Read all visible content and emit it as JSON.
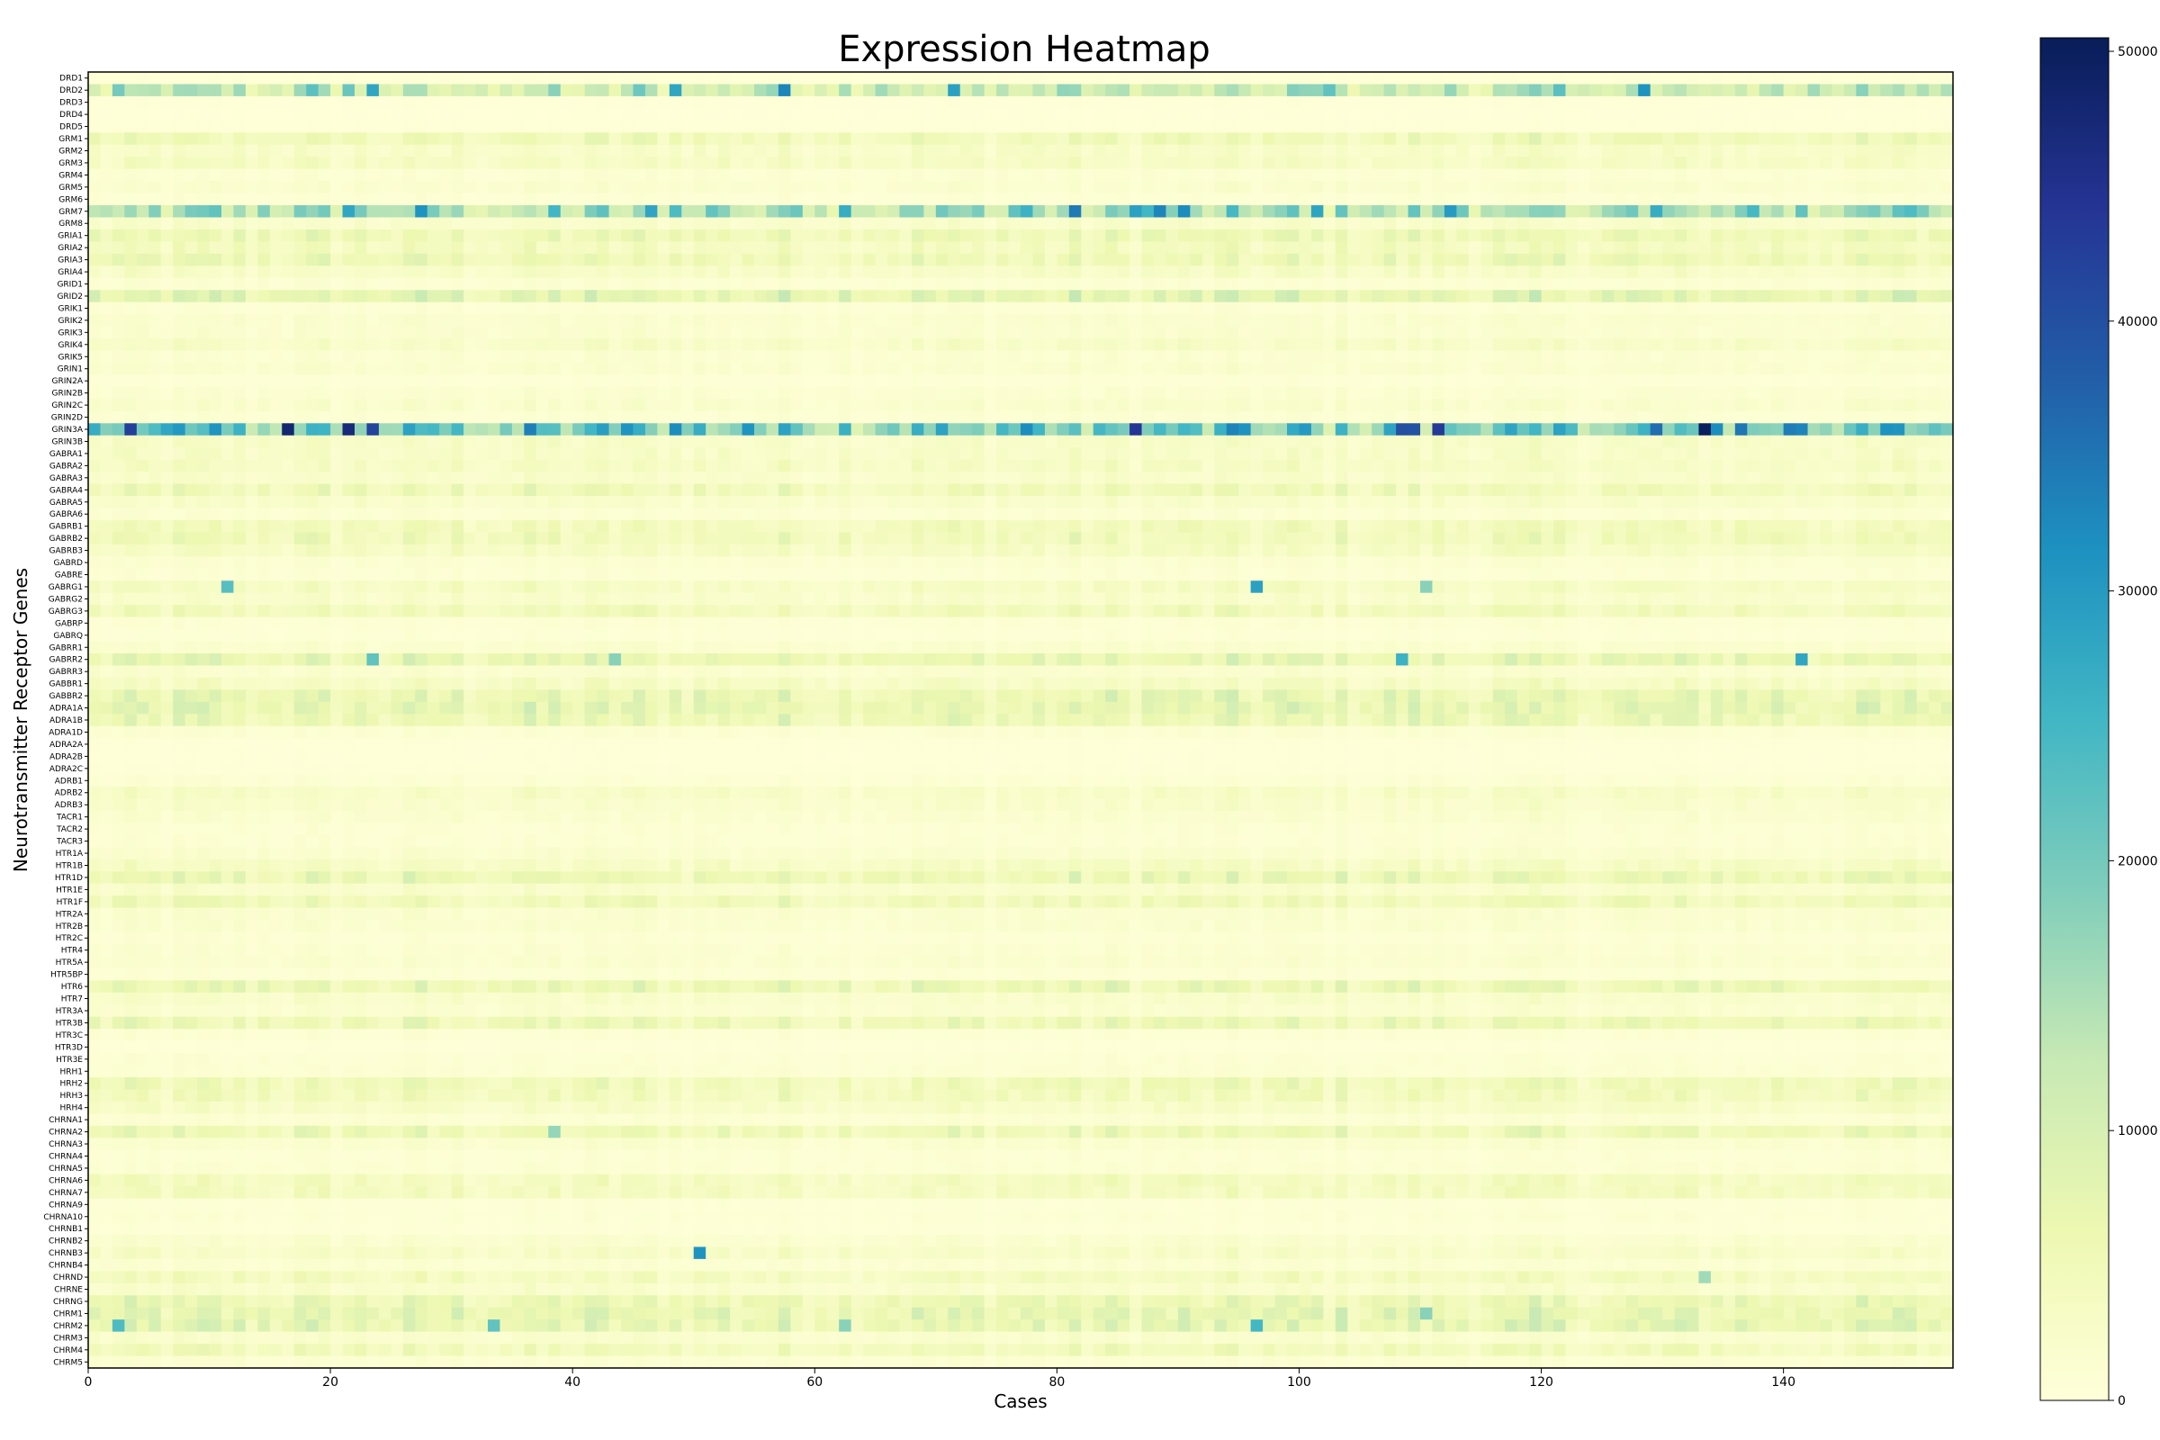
{
  "chart_data": {
    "type": "heatmap",
    "title": "Expression Heatmap",
    "xlabel": "Cases",
    "ylabel": "Neurotransmitter Receptor Genes",
    "x_count": 154,
    "xlim": [
      0,
      154
    ],
    "x_ticks": [
      0,
      20,
      40,
      60,
      80,
      100,
      120,
      140
    ],
    "colorbar": {
      "min": 0,
      "max": 50500,
      "ticks": [
        0,
        10000,
        20000,
        30000,
        40000,
        50000
      ],
      "colormap": "YlGnBu",
      "colors": [
        "#ffffd9",
        "#edf8b1",
        "#c7e9b4",
        "#7fcdbb",
        "#41b6c4",
        "#1d91c0",
        "#225ea8",
        "#253494",
        "#081d58"
      ]
    },
    "genes": [
      "DRD1",
      "DRD2",
      "DRD3",
      "DRD4",
      "DRD5",
      "GRM1",
      "GRM2",
      "GRM3",
      "GRM4",
      "GRM5",
      "GRM6",
      "GRM7",
      "GRM8",
      "GRIA1",
      "GRIA2",
      "GRIA3",
      "GRIA4",
      "GRID1",
      "GRID2",
      "GRIK1",
      "GRIK2",
      "GRIK3",
      "GRIK4",
      "GRIK5",
      "GRIN1",
      "GRIN2A",
      "GRIN2B",
      "GRIN2C",
      "GRIN2D",
      "GRIN3A",
      "GRIN3B",
      "GABRA1",
      "GABRA2",
      "GABRA3",
      "GABRA4",
      "GABRA5",
      "GABRA6",
      "GABRB1",
      "GABRB2",
      "GABRB3",
      "GABRD",
      "GABRE",
      "GABRG1",
      "GABRG2",
      "GABRG3",
      "GABRP",
      "GABRQ",
      "GABRR1",
      "GABRR2",
      "GABRR3",
      "GABBR1",
      "GABBR2",
      "ADRA1A",
      "ADRA1B",
      "ADRA1D",
      "ADRA2A",
      "ADRA2B",
      "ADRA2C",
      "ADRB1",
      "ADRB2",
      "ADRB3",
      "TACR1",
      "TACR2",
      "TACR3",
      "HTR1A",
      "HTR1B",
      "HTR1D",
      "HTR1E",
      "HTR1F",
      "HTR2A",
      "HTR2B",
      "HTR2C",
      "HTR4",
      "HTR5A",
      "HTR5BP",
      "HTR6",
      "HTR7",
      "HTR3A",
      "HTR3B",
      "HTR3C",
      "HTR3D",
      "HTR3E",
      "HRH1",
      "HRH2",
      "HRH3",
      "HRH4",
      "CHRNA1",
      "CHRNA2",
      "CHRNA3",
      "CHRNA4",
      "CHRNA5",
      "CHRNA6",
      "CHRNA7",
      "CHRNA9",
      "CHRNA10",
      "CHRNB1",
      "CHRNB2",
      "CHRNB3",
      "CHRNB4",
      "CHRND",
      "CHRNE",
      "CHRNG",
      "CHRM1",
      "CHRM2",
      "CHRM3",
      "CHRM4",
      "CHRM5"
    ],
    "row_base_values": [
      400,
      10000,
      300,
      200,
      400,
      4500,
      2500,
      3000,
      1000,
      1500,
      800,
      13000,
      2000,
      5000,
      3500,
      5000,
      2500,
      1000,
      7000,
      800,
      1500,
      1500,
      2500,
      1200,
      1500,
      600,
      1200,
      1800,
      1000,
      18000,
      2500,
      2500,
      3000,
      2000,
      4500,
      2000,
      1000,
      4000,
      4500,
      3000,
      1200,
      800,
      3000,
      2000,
      4000,
      800,
      600,
      1500,
      6000,
      1500,
      3000,
      6000,
      6500,
      5500,
      1000,
      400,
      300,
      400,
      900,
      2500,
      2000,
      1500,
      900,
      900,
      1500,
      3000,
      5500,
      2000,
      4500,
      1500,
      1500,
      800,
      1200,
      1500,
      800,
      5500,
      2000,
      1500,
      5000,
      800,
      400,
      800,
      1000,
      4500,
      4000,
      2500,
      1000,
      5000,
      1500,
      800,
      1000,
      3500,
      3500,
      600,
      800,
      500,
      1500,
      2500,
      1200,
      3500,
      2000,
      5500,
      6500,
      6500,
      1800,
      4000,
      1200
    ],
    "hot_cells": [
      {
        "gene": "DRD2",
        "case": 2,
        "value": 20000
      },
      {
        "gene": "DRD2",
        "case": 21,
        "value": 21000
      },
      {
        "gene": "DRD2",
        "case": 23,
        "value": 28000
      },
      {
        "gene": "DRD2",
        "case": 48,
        "value": 28000
      },
      {
        "gene": "DRD2",
        "case": 57,
        "value": 33000
      },
      {
        "gene": "DRD2",
        "case": 71,
        "value": 29000
      },
      {
        "gene": "DRD2",
        "case": 102,
        "value": 22000
      },
      {
        "gene": "DRD2",
        "case": 128,
        "value": 31000
      },
      {
        "gene": "DRD2",
        "case": 38,
        "value": 18000
      },
      {
        "gene": "DRD2",
        "case": 112,
        "value": 17000
      },
      {
        "gene": "GRM7",
        "case": 21,
        "value": 28000
      },
      {
        "gene": "GRM7",
        "case": 10,
        "value": 22000
      },
      {
        "gene": "GRM7",
        "case": 48,
        "value": 24000
      },
      {
        "gene": "GRM7",
        "case": 62,
        "value": 27000
      },
      {
        "gene": "GRM7",
        "case": 77,
        "value": 26000
      },
      {
        "gene": "GRM7",
        "case": 86,
        "value": 29000
      },
      {
        "gene": "GRM7",
        "case": 88,
        "value": 33000
      },
      {
        "gene": "GRM7",
        "case": 112,
        "value": 30000
      },
      {
        "gene": "GRM7",
        "case": 129,
        "value": 27000
      },
      {
        "gene": "GRM7",
        "case": 141,
        "value": 22000
      },
      {
        "gene": "GRIN3A",
        "case": 16,
        "value": 48000
      },
      {
        "gene": "GRIN3A",
        "case": 21,
        "value": 47000
      },
      {
        "gene": "GRIN3A",
        "case": 23,
        "value": 42000
      },
      {
        "gene": "GRIN3A",
        "case": 86,
        "value": 44000
      },
      {
        "gene": "GRIN3A",
        "case": 108,
        "value": 40000
      },
      {
        "gene": "GRIN3A",
        "case": 133,
        "value": 50000
      },
      {
        "gene": "GRIN3A",
        "case": 136,
        "value": 35000
      },
      {
        "gene": "GRIN3A",
        "case": 129,
        "value": 36000
      },
      {
        "gene": "GRIN3A",
        "case": 140,
        "value": 34000
      },
      {
        "gene": "GRIN3A",
        "case": 141,
        "value": 33000
      },
      {
        "gene": "GRIN3A",
        "case": 10,
        "value": 31000
      },
      {
        "gene": "GRIN3A",
        "case": 44,
        "value": 31000
      },
      {
        "gene": "GRIN3A",
        "case": 48,
        "value": 32000
      },
      {
        "gene": "GRIN3A",
        "case": 54,
        "value": 31000
      },
      {
        "gene": "GRIN3A",
        "case": 77,
        "value": 32000
      },
      {
        "gene": "GRIN3A",
        "case": 6,
        "value": 28000
      },
      {
        "gene": "GRIN3A",
        "case": 0,
        "value": 27000
      },
      {
        "gene": "GABRG1",
        "case": 11,
        "value": 23000
      },
      {
        "gene": "GABRG1",
        "case": 96,
        "value": 29000
      },
      {
        "gene": "GABRG1",
        "case": 110,
        "value": 18000
      },
      {
        "gene": "GABRR2",
        "case": 23,
        "value": 22000
      },
      {
        "gene": "GABRR2",
        "case": 108,
        "value": 26000
      },
      {
        "gene": "GABRR2",
        "case": 141,
        "value": 28000
      },
      {
        "gene": "GABRR2",
        "case": 43,
        "value": 18000
      },
      {
        "gene": "CHRNB3",
        "case": 50,
        "value": 31000
      },
      {
        "gene": "CHRM2",
        "case": 2,
        "value": 24000
      },
      {
        "gene": "CHRM2",
        "case": 33,
        "value": 22000
      },
      {
        "gene": "CHRM2",
        "case": 96,
        "value": 25000
      },
      {
        "gene": "CHRM2",
        "case": 62,
        "value": 18000
      },
      {
        "gene": "CHRM1",
        "case": 110,
        "value": 18000
      },
      {
        "gene": "CHRNA2",
        "case": 38,
        "value": 17000
      },
      {
        "gene": "CHRND",
        "case": 133,
        "value": 16000
      }
    ]
  }
}
